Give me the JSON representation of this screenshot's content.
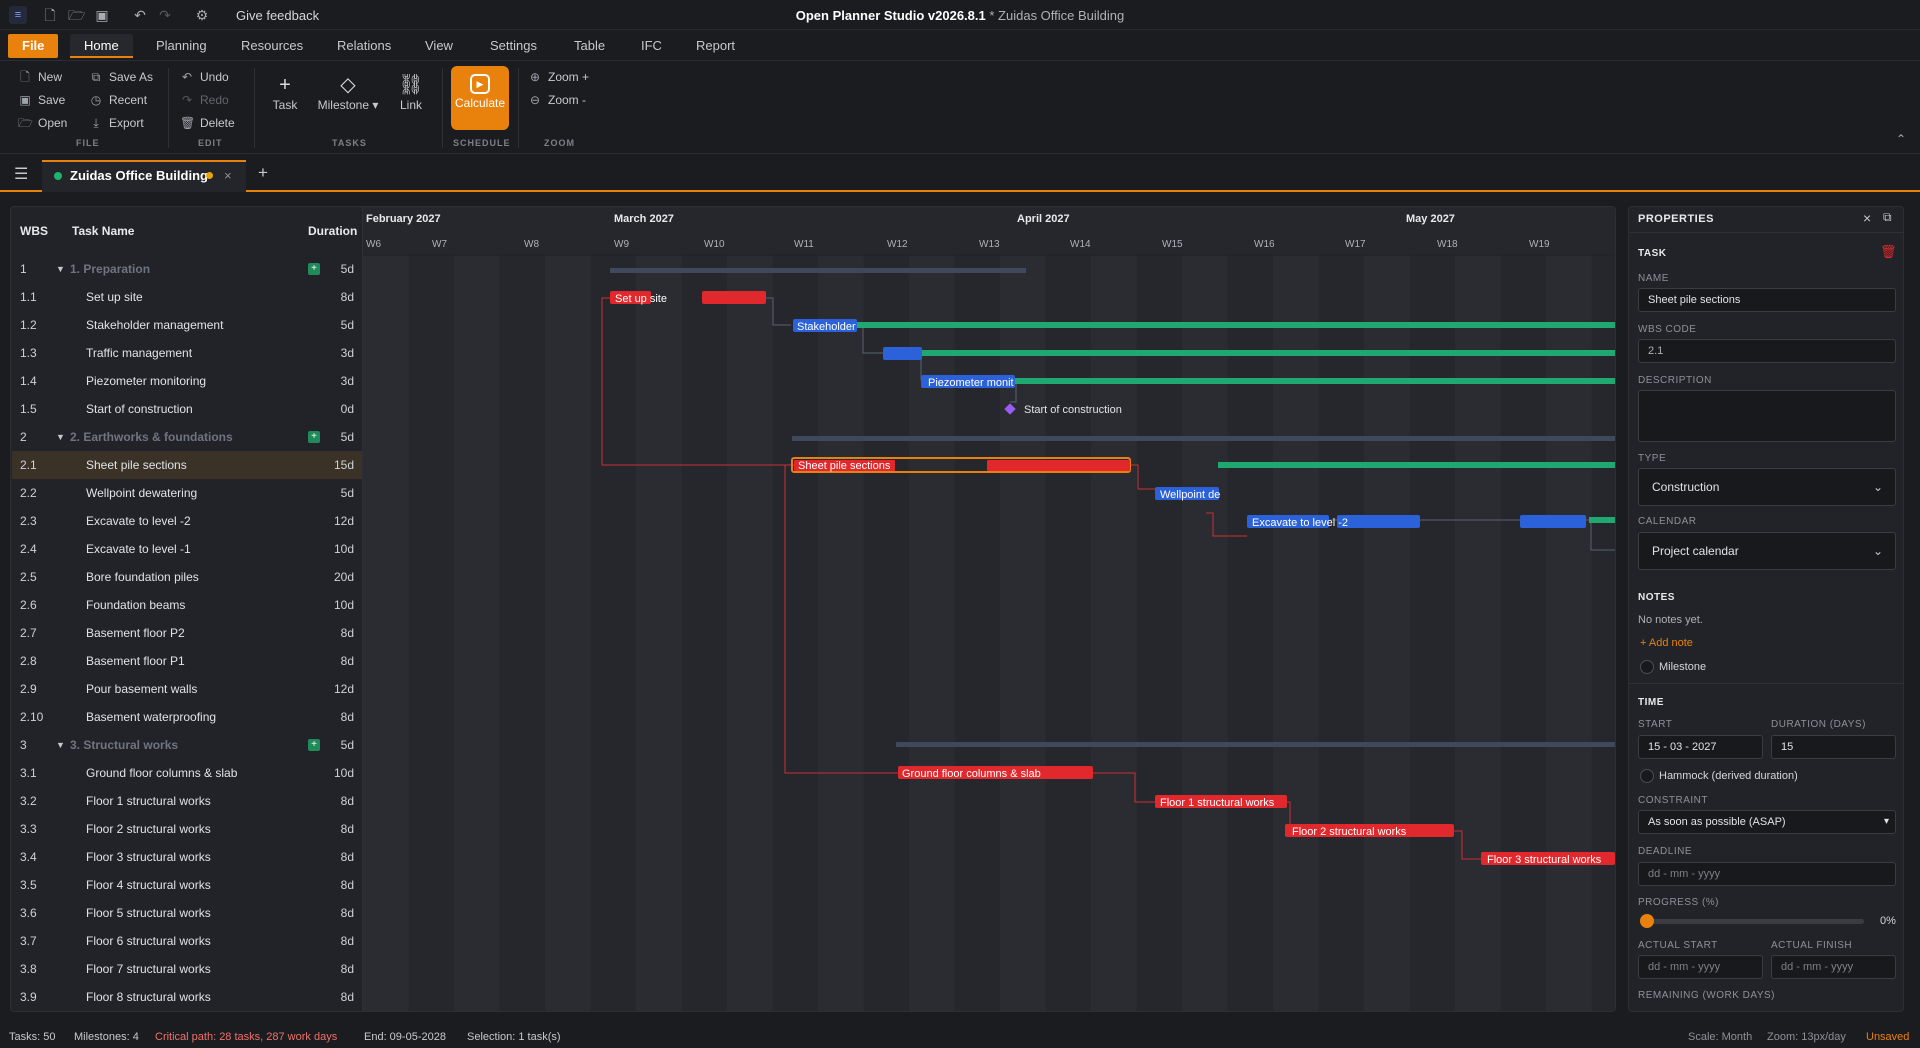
{
  "titlebar": {
    "app": "Open Planner Studio v2026.8.1",
    "doc": "* Zuidas Office Building",
    "feedback": "Give feedback"
  },
  "menu": [
    "File",
    "Home",
    "Planning",
    "Resources",
    "Relations",
    "View",
    "Settings",
    "Table",
    "IFC",
    "Report"
  ],
  "ribbon": {
    "file": {
      "new": "New",
      "save": "Save",
      "open": "Open",
      "save_as": "Save As",
      "recent": "Recent",
      "export": "Export",
      "label": "FILE"
    },
    "edit": {
      "undo": "Undo",
      "redo": "Redo",
      "delete": "Delete",
      "label": "EDIT"
    },
    "tasks": {
      "task": "Task",
      "milestone": "Milestone ▾",
      "link": "Link",
      "label": "TASKS"
    },
    "schedule": {
      "calculate": "Calculate",
      "label": "SCHEDULE"
    },
    "zoom": {
      "zoom_in": "Zoom +",
      "zoom_out": "Zoom -",
      "label": "ZOOM"
    }
  },
  "tab": {
    "title": "Zuidas Office Building"
  },
  "grid": {
    "headers": {
      "wbs": "WBS",
      "name": "Task Name",
      "duration": "Duration"
    },
    "rows": [
      {
        "wbs": "1",
        "name": "1. Preparation",
        "dur": "5d",
        "group": true
      },
      {
        "wbs": "1.1",
        "name": "Set up site",
        "dur": "8d"
      },
      {
        "wbs": "1.2",
        "name": "Stakeholder management",
        "dur": "5d"
      },
      {
        "wbs": "1.3",
        "name": "Traffic management",
        "dur": "3d"
      },
      {
        "wbs": "1.4",
        "name": "Piezometer monitoring",
        "dur": "3d"
      },
      {
        "wbs": "1.5",
        "name": "Start of construction",
        "dur": "0d"
      },
      {
        "wbs": "2",
        "name": "2. Earthworks & foundations",
        "dur": "5d",
        "group": true
      },
      {
        "wbs": "2.1",
        "name": "Sheet pile sections",
        "dur": "15d",
        "selected": true
      },
      {
        "wbs": "2.2",
        "name": "Wellpoint dewatering",
        "dur": "5d"
      },
      {
        "wbs": "2.3",
        "name": "Excavate to level -2",
        "dur": "12d"
      },
      {
        "wbs": "2.4",
        "name": "Excavate to level -1",
        "dur": "10d"
      },
      {
        "wbs": "2.5",
        "name": "Bore foundation piles",
        "dur": "20d"
      },
      {
        "wbs": "2.6",
        "name": "Foundation beams",
        "dur": "10d"
      },
      {
        "wbs": "2.7",
        "name": "Basement floor P2",
        "dur": "8d"
      },
      {
        "wbs": "2.8",
        "name": "Basement floor P1",
        "dur": "8d"
      },
      {
        "wbs": "2.9",
        "name": "Pour basement walls",
        "dur": "12d"
      },
      {
        "wbs": "2.10",
        "name": "Basement waterproofing",
        "dur": "8d"
      },
      {
        "wbs": "3",
        "name": "3. Structural works",
        "dur": "5d",
        "group": true
      },
      {
        "wbs": "3.1",
        "name": "Ground floor columns & slab",
        "dur": "10d"
      },
      {
        "wbs": "3.2",
        "name": "Floor 1 structural works",
        "dur": "8d"
      },
      {
        "wbs": "3.3",
        "name": "Floor 2 structural works",
        "dur": "8d"
      },
      {
        "wbs": "3.4",
        "name": "Floor 3 structural works",
        "dur": "8d"
      },
      {
        "wbs": "3.5",
        "name": "Floor 4 structural works",
        "dur": "8d"
      },
      {
        "wbs": "3.6",
        "name": "Floor 5 structural works",
        "dur": "8d"
      },
      {
        "wbs": "3.7",
        "name": "Floor 6 structural works",
        "dur": "8d"
      },
      {
        "wbs": "3.8",
        "name": "Floor 7 structural works",
        "dur": "8d"
      },
      {
        "wbs": "3.9",
        "name": "Floor 8 structural works",
        "dur": "8d"
      }
    ]
  },
  "gantt": {
    "months": [
      "February 2027",
      "March 2027",
      "April 2027",
      "May 2027"
    ],
    "weeks": [
      "W6",
      "W7",
      "W8",
      "W9",
      "W10",
      "W11",
      "W12",
      "W13",
      "W14",
      "W15",
      "W16",
      "W17",
      "W18",
      "W19"
    ],
    "labels": {
      "setup": "Set up site",
      "stake": "Stakeholder",
      "piezo": "Piezometer monit",
      "start": "Start of construction",
      "sheet": "Sheet pile sections",
      "wellpoint": "Wellpoint de",
      "excav": "Excavate to level -2",
      "ground": "Ground floor columns & slab",
      "f1": "Floor 1 structural works",
      "f2": "Floor 2 structural works",
      "f3": "Floor 3 structural works"
    },
    "colors": {
      "critical": "#e0282d",
      "normal": "#2b62d9",
      "float": "#1fa870",
      "summary": "#3e4a5c",
      "milestone": "#9b5cf5"
    }
  },
  "props": {
    "title": "PROPERTIES",
    "section": "TASK",
    "name_label": "NAME",
    "name": "Sheet pile sections",
    "wbs_label": "WBS CODE",
    "wbs": "2.1",
    "desc_label": "DESCRIPTION",
    "type_label": "TYPE",
    "type": "Construction",
    "cal_label": "CALENDAR",
    "calendar": "Project calendar",
    "notes_label": "NOTES",
    "no_notes": "No notes yet.",
    "add_note": "+ Add note",
    "milestone": "Milestone",
    "time_label": "TIME",
    "start_label": "START",
    "start": "15 - 03 - 2027",
    "dur_label": "DURATION (DAYS)",
    "duration": "15",
    "hammock": "Hammock (derived duration)",
    "constraint_label": "CONSTRAINT",
    "constraint": "As soon as possible (ASAP)",
    "deadline_label": "DEADLINE",
    "deadline_ph": "dd - mm -  yyyy",
    "progress_label": "PROGRESS (%)",
    "progress": "0%",
    "actual_start_label": "ACTUAL START",
    "actual_finish_label": "ACTUAL FINISH",
    "date_ph": "dd - mm -  yyyy",
    "remaining_label": "REMAINING (WORK DAYS)"
  },
  "status": {
    "tasks": "Tasks: 50",
    "milestones": "Milestones: 4",
    "critical": "Critical path: 28 tasks, 287 work days",
    "end": "End: 09-05-2028",
    "selection": "Selection: 1 task(s)",
    "scale": "Scale: Month",
    "zoom": "Zoom: 13px/day",
    "unsaved": "Unsaved"
  }
}
